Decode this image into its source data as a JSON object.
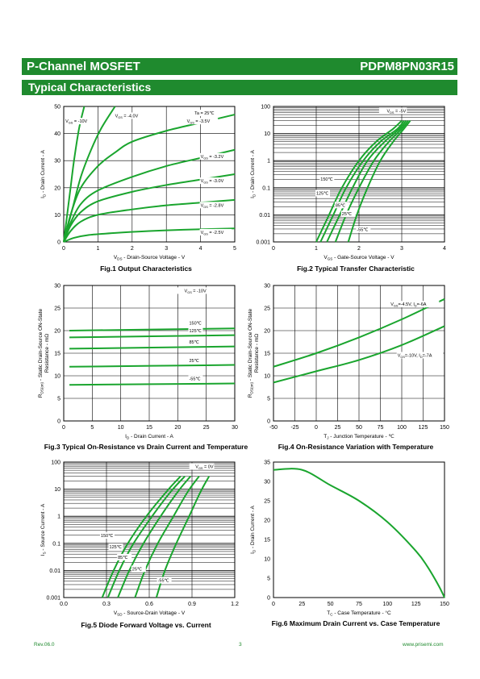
{
  "header": {
    "left": "P-Channel MOSFET",
    "right": "PDPM8PN03R15"
  },
  "section_title": "Typical Characteristics",
  "footer": {
    "rev": "Rev.06.0",
    "page": "3",
    "url": "www.prisemi.com"
  },
  "colors": {
    "brand": "#1f8a2e",
    "curve": "#1aa52e"
  },
  "charts": [
    {
      "id": "fig1",
      "caption": "Fig.1 Output Characteristics",
      "xlabel": "V<sub>DS</sub> - Drain-Source Voltage - V",
      "ylabel": "I<sub>D</sub> - Drain Current - A"
    },
    {
      "id": "fig2",
      "caption": "Fig.2 Typical Transfer Characteristic",
      "xlabel": "V<sub>GS</sub> - Gate-Source Voltage - V",
      "ylabel": "I<sub>D</sub> - Drain Current - A"
    },
    {
      "id": "fig3",
      "caption": "Fig.3 Typical On-Resistance  vs Drain Current and Temperature",
      "xlabel": "I<sub>D</sub> - Drain Current - A",
      "ylabel": "R<sub>DS(on)</sub> - Static Drain-Source ON-State|Resistance - mΩ"
    },
    {
      "id": "fig4",
      "caption": "Fig.4 On-Resistance Variation with Temperature",
      "xlabel": "T<sub>J</sub> - Junction Temperature - ℃",
      "ylabel": "R<sub>DS(on)</sub> - Static Drain-Source ON-State|Resistance - mΩ"
    },
    {
      "id": "fig5",
      "caption": "Fig.5 Diode Forward Voltage vs. Current",
      "xlabel": "V<sub>SD</sub> - Source-Drain Voltage - V",
      "ylabel": "I<sub>S</sub> - Source Current - A"
    },
    {
      "id": "fig6",
      "caption": "Fig.6 Maximum Drain Current vs. Case Temperature",
      "xlabel": "T<sub>C</sub> - Case Temperature - °C",
      "ylabel": "I<sub>D</sub> - Drain Current - A"
    }
  ],
  "chart_data": [
    {
      "type": "line",
      "title": "Fig.1 Output Characteristics",
      "xlim": [
        0,
        5
      ],
      "ylim": [
        0,
        50
      ],
      "xticks": [
        0,
        1,
        2,
        3,
        4,
        5
      ],
      "yticks": [
        0,
        10,
        20,
        30,
        40,
        50
      ],
      "grid": true,
      "log_y": false,
      "annotations": [
        "Ta = 25℃"
      ],
      "series": [
        {
          "name": "V<sub>GS</sub> = -10V",
          "x": [
            0,
            0.1,
            0.2,
            0.3,
            0.45,
            0.6
          ],
          "y": [
            0,
            10,
            20,
            30,
            42,
            50
          ]
        },
        {
          "name": "V<sub>GS</sub> = -4.0V",
          "x": [
            0,
            0.25,
            0.5,
            0.8,
            1.1,
            1.5
          ],
          "y": [
            0,
            12,
            24,
            34,
            42,
            50
          ]
        },
        {
          "name": "V<sub>GS</sub> = -3.5V",
          "x": [
            0,
            0.2,
            0.5,
            1,
            1.5,
            2,
            3,
            4,
            5
          ],
          "y": [
            0,
            10,
            20,
            28,
            33,
            37,
            41,
            44,
            47
          ]
        },
        {
          "name": "V<sub>GS</sub> = -3.2V",
          "x": [
            0,
            0.2,
            0.5,
            1,
            2,
            3,
            4,
            5
          ],
          "y": [
            0,
            7,
            14,
            19,
            24,
            28,
            31,
            34
          ]
        },
        {
          "name": "V<sub>GS</sub> = -3.0V",
          "x": [
            0,
            0.2,
            0.5,
            1,
            2,
            3,
            4,
            5
          ],
          "y": [
            0,
            6,
            11,
            15,
            18.5,
            21,
            23,
            25
          ]
        },
        {
          "name": "V<sub>GS</sub> = -2.8V",
          "x": [
            0,
            0.2,
            0.5,
            1,
            2,
            3,
            4,
            5
          ],
          "y": [
            0,
            4,
            7.5,
            10,
            12,
            13.5,
            14.5,
            15.5
          ]
        },
        {
          "name": "V<sub>GS</sub> = -2.5V",
          "x": [
            0,
            0.3,
            0.7,
            1.5,
            2.5,
            3.5,
            5
          ],
          "y": [
            0,
            1.5,
            2.5,
            3.3,
            4,
            4.5,
            5
          ]
        }
      ]
    },
    {
      "type": "line",
      "title": "Fig.2 Typical Transfer Characteristic",
      "xlim": [
        0,
        4
      ],
      "ylim": [
        0.001,
        100
      ],
      "xticks": [
        0,
        1,
        2,
        3,
        4
      ],
      "yticks": [
        0.001,
        0.01,
        0.1,
        1,
        10,
        100
      ],
      "grid": true,
      "log_y": true,
      "annotations": [
        "V<sub>DS</sub> = -5V"
      ],
      "series": [
        {
          "name": "150℃",
          "x": [
            1,
            1.3,
            1.6,
            2,
            2.4,
            2.8,
            3.0
          ],
          "y": [
            0.001,
            0.01,
            0.1,
            1,
            5,
            15,
            30
          ]
        },
        {
          "name": "125℃",
          "x": [
            1.1,
            1.4,
            1.7,
            2.1,
            2.5,
            2.9,
            3.05
          ],
          "y": [
            0.001,
            0.01,
            0.1,
            1,
            5,
            15,
            30
          ]
        },
        {
          "name": "85℃",
          "x": [
            1.25,
            1.55,
            1.85,
            2.2,
            2.6,
            2.95,
            3.1
          ],
          "y": [
            0.001,
            0.01,
            0.1,
            1,
            5,
            15,
            30
          ]
        },
        {
          "name": "25℃",
          "x": [
            1.45,
            1.7,
            2.0,
            2.35,
            2.7,
            3.0,
            3.15
          ],
          "y": [
            0.001,
            0.01,
            0.1,
            1,
            5,
            15,
            30
          ]
        },
        {
          "name": "-55℃",
          "x": [
            1.75,
            1.95,
            2.2,
            2.5,
            2.8,
            3.05,
            3.2
          ],
          "y": [
            0.001,
            0.01,
            0.1,
            1,
            5,
            15,
            30
          ]
        }
      ]
    },
    {
      "type": "line",
      "title": "Fig.3 Typical On-Resistance  vs Drain Current and Temperature",
      "xlim": [
        0,
        30
      ],
      "ylim": [
        0,
        30
      ],
      "xticks": [
        0,
        5,
        10,
        15,
        20,
        25,
        30
      ],
      "yticks": [
        0,
        5,
        10,
        15,
        20,
        25,
        30
      ],
      "grid": true,
      "log_y": false,
      "annotations": [
        "V<sub>GS</sub> = -10V"
      ],
      "series": [
        {
          "name": "150℃",
          "x": [
            1,
            30
          ],
          "y": [
            20,
            20.5
          ]
        },
        {
          "name": "125℃",
          "x": [
            1,
            30
          ],
          "y": [
            18.5,
            19
          ]
        },
        {
          "name": "85℃",
          "x": [
            1,
            30
          ],
          "y": [
            16,
            16.5
          ]
        },
        {
          "name": "25℃",
          "x": [
            1,
            30
          ],
          "y": [
            12,
            12.4
          ]
        },
        {
          "name": "-55℃",
          "x": [
            1,
            30
          ],
          "y": [
            8,
            8.3
          ]
        }
      ]
    },
    {
      "type": "line",
      "title": "Fig.4 On-Resistance Variation with Temperature",
      "xlim": [
        -50,
        150
      ],
      "ylim": [
        0,
        30
      ],
      "xticks": [
        -50,
        -25,
        0,
        25,
        50,
        75,
        100,
        125,
        150
      ],
      "yticks": [
        0,
        5,
        10,
        15,
        20,
        25,
        30
      ],
      "grid": true,
      "log_y": false,
      "series": [
        {
          "name": "V<sub>GS</sub>=-4.5V, I<sub>D</sub>=-6A",
          "x": [
            -50,
            0,
            50,
            100,
            150
          ],
          "y": [
            12,
            15,
            18.5,
            22.5,
            27
          ]
        },
        {
          "name": "V<sub>GS</sub>=-10V, I<sub>D</sub>=-7A",
          "x": [
            -50,
            0,
            50,
            100,
            150
          ],
          "y": [
            8.5,
            11,
            13.5,
            16.8,
            21
          ]
        }
      ]
    },
    {
      "type": "line",
      "title": "Fig.5 Diode Forward Voltage vs. Current",
      "xlim": [
        0,
        1.2
      ],
      "ylim": [
        0.001,
        100
      ],
      "xticks": [
        0.0,
        0.3,
        0.6,
        0.9,
        1.2
      ],
      "yticks": [
        0.001,
        0.01,
        0.1,
        1,
        10,
        100
      ],
      "grid": true,
      "log_y": true,
      "annotations": [
        "V<sub>GS</sub> = 0V"
      ],
      "series": [
        {
          "name": "150℃",
          "x": [
            0.27,
            0.35,
            0.45,
            0.58,
            0.72,
            0.82
          ],
          "y": [
            0.001,
            0.01,
            0.1,
            1,
            8,
            30
          ]
        },
        {
          "name": "125℃",
          "x": [
            0.31,
            0.39,
            0.49,
            0.62,
            0.75,
            0.85
          ],
          "y": [
            0.001,
            0.01,
            0.1,
            1,
            8,
            30
          ]
        },
        {
          "name": "85℃",
          "x": [
            0.38,
            0.46,
            0.56,
            0.68,
            0.8,
            0.89
          ],
          "y": [
            0.001,
            0.01,
            0.1,
            1,
            8,
            30
          ]
        },
        {
          "name": "25℃",
          "x": [
            0.5,
            0.57,
            0.66,
            0.77,
            0.87,
            0.95
          ],
          "y": [
            0.001,
            0.01,
            0.1,
            1,
            8,
            30
          ]
        },
        {
          "name": "-55℃",
          "x": [
            0.65,
            0.71,
            0.79,
            0.88,
            0.96,
            1.02
          ],
          "y": [
            0.001,
            0.01,
            0.1,
            1,
            8,
            30
          ]
        }
      ]
    },
    {
      "type": "line",
      "title": "Fig.6 Maximum Drain Current vs. Case Temperature",
      "xlim": [
        0,
        150
      ],
      "ylim": [
        0,
        35
      ],
      "xticks": [
        0,
        25,
        50,
        75,
        100,
        125,
        150
      ],
      "yticks": [
        0,
        5,
        10,
        15,
        20,
        25,
        30,
        35
      ],
      "grid": false,
      "log_y": false,
      "series": [
        {
          "name": "",
          "x": [
            0,
            25,
            50,
            75,
            100,
            125,
            135,
            145,
            150
          ],
          "y": [
            33,
            33,
            29,
            25,
            19.5,
            12,
            8,
            3,
            0
          ]
        }
      ]
    }
  ]
}
